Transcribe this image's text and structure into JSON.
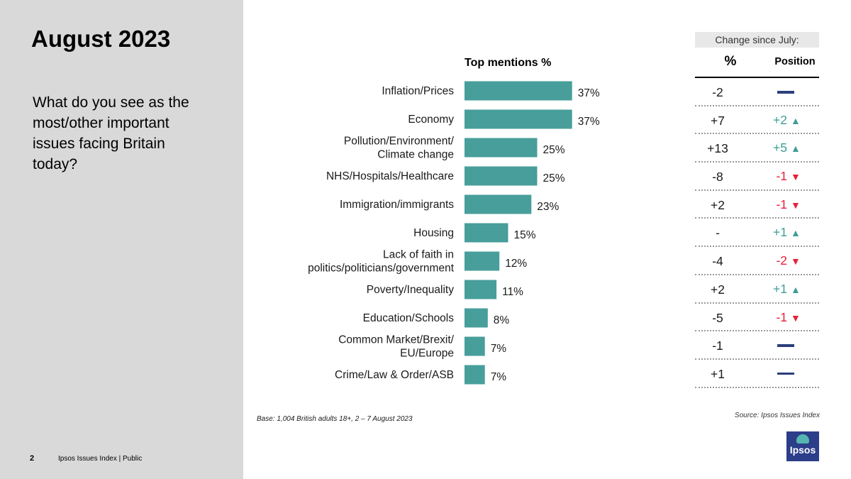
{
  "slide": {
    "title": "August 2023",
    "question": "What do you see as the most/other important issues facing Britain today?",
    "page_number": "2",
    "footer": "Ipsos Issues Index | Public",
    "base_note": "Base: 1,004 British adults 18+, 2 – 7 August 2023",
    "source_note": "Source: Ipsos Issues Index",
    "logo_text": "Ipsos"
  },
  "colors": {
    "bar": "#479e9a",
    "up": "#3e9e96",
    "down": "#e8203a",
    "no_change": "#2b3f7b",
    "left_panel": "#d9d9d9"
  },
  "chart_data": {
    "type": "bar",
    "orientation": "horizontal",
    "title": "Top mentions %",
    "categories": [
      "Inflation/Prices",
      "Economy",
      "Pollution/Environment/\nClimate change",
      "NHS/Hospitals/Healthcare",
      "Immigration/immigrants",
      "Housing",
      "Lack of faith in\npolitics/politicians/government",
      "Poverty/Inequality",
      "Education/Schools",
      "Common Market/Brexit/\nEU/Europe",
      "Crime/Law & Order/ASB"
    ],
    "values": [
      37,
      37,
      25,
      25,
      23,
      15,
      12,
      11,
      8,
      7,
      7
    ],
    "value_labels": [
      "37%",
      "37%",
      "25%",
      "25%",
      "23%",
      "15%",
      "12%",
      "11%",
      "8%",
      "7%",
      "7%"
    ],
    "xlim": [
      0,
      100
    ],
    "grid": false,
    "legend": "none"
  },
  "change_table": {
    "header": "Change since July:",
    "col_pct": "%",
    "col_position": "Position",
    "rows": [
      {
        "pct": "-2",
        "position": "",
        "direction": "none"
      },
      {
        "pct": "+7",
        "position": "+2",
        "direction": "up"
      },
      {
        "pct": "+13",
        "position": "+5",
        "direction": "up"
      },
      {
        "pct": "-8",
        "position": "-1",
        "direction": "down"
      },
      {
        "pct": "+2",
        "position": "-1",
        "direction": "down"
      },
      {
        "pct": "-",
        "position": "+1",
        "direction": "up"
      },
      {
        "pct": "-4",
        "position": "-2",
        "direction": "down"
      },
      {
        "pct": "+2",
        "position": "+1",
        "direction": "up"
      },
      {
        "pct": "-5",
        "position": "-1",
        "direction": "down"
      },
      {
        "pct": "-1",
        "position": "",
        "direction": "none"
      },
      {
        "pct": "+1",
        "position": "",
        "direction": "none"
      }
    ]
  }
}
